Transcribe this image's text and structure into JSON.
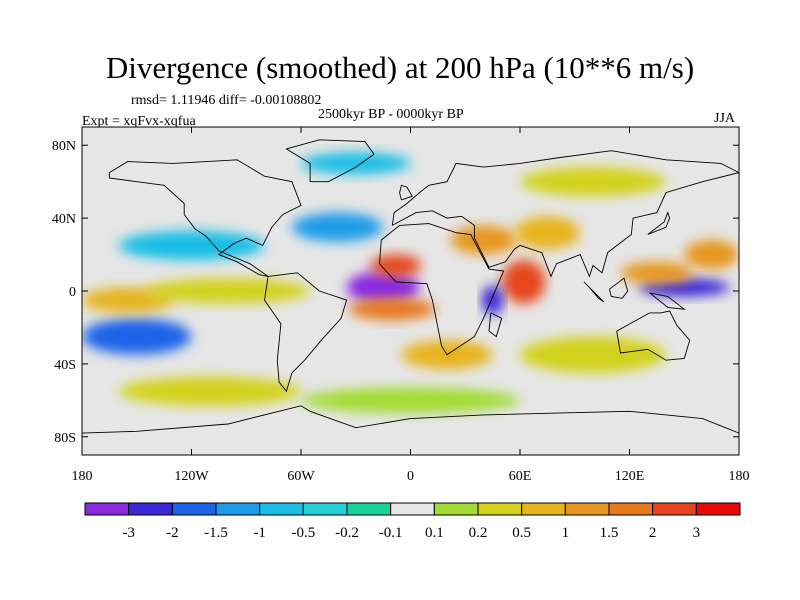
{
  "chart_data": {
    "type": "heatmap",
    "title": "Divergence (smoothed) at 200 hPa (10**6 m/s)",
    "stats_text": "rmsd= 1.11946 diff= -0.00108802",
    "period_text": "2500kyr BP - 0000kyr BP",
    "experiment_text": "Expt = xqFvx-xqfua",
    "season_text": "JJA",
    "x_axis": {
      "range": [
        -180,
        180
      ],
      "ticks": [
        -180,
        -120,
        -60,
        0,
        60,
        120,
        180
      ],
      "tick_labels": [
        "180",
        "120W",
        "60W",
        "0",
        "60E",
        "120E",
        "180"
      ]
    },
    "y_axis": {
      "range": [
        -90,
        90
      ],
      "ticks": [
        80,
        40,
        0,
        -40,
        -80
      ],
      "tick_labels": [
        "80N",
        "40N",
        "0",
        "40S",
        "80S"
      ]
    },
    "colorbar": {
      "levels": [
        "-3",
        "-2",
        "-1.5",
        "-1",
        "-0.5",
        "-0.2",
        "-0.1",
        "0.1",
        "0.2",
        "0.5",
        "1",
        "1.5",
        "2",
        "3"
      ],
      "colors": [
        "#8a2be2",
        "#3a28d4",
        "#1e64e8",
        "#1e9be8",
        "#19bde6",
        "#23cfd2",
        "#19d39a",
        "#e6e6e6",
        "#a0dc32",
        "#d2d21e",
        "#e6b41e",
        "#e6961e",
        "#e6781e",
        "#e6461e",
        "#e60a0a"
      ]
    },
    "anomalies": [
      {
        "lon": -15,
        "lat": 2,
        "rx": 20,
        "ry": 9,
        "level": -3
      },
      {
        "lon": -8,
        "lat": 14,
        "rx": 14,
        "ry": 6,
        "level": 3
      },
      {
        "lon": -10,
        "lat": -10,
        "rx": 24,
        "ry": 6,
        "level": 2
      },
      {
        "lon": 62,
        "lat": 5,
        "rx": 12,
        "ry": 12,
        "level": 3
      },
      {
        "lon": 45,
        "lat": -5,
        "rx": 6,
        "ry": 8,
        "level": -2
      },
      {
        "lon": 40,
        "lat": 28,
        "rx": 18,
        "ry": 8,
        "level": 1.5
      },
      {
        "lon": 75,
        "lat": 32,
        "rx": 18,
        "ry": 9,
        "level": 1
      },
      {
        "lon": 150,
        "lat": 2,
        "rx": 25,
        "ry": 5,
        "level": -2
      },
      {
        "lon": 135,
        "lat": 10,
        "rx": 20,
        "ry": 6,
        "level": 1.5
      },
      {
        "lon": 165,
        "lat": 20,
        "rx": 15,
        "ry": 8,
        "level": 1.5
      },
      {
        "lon": -150,
        "lat": -25,
        "rx": 30,
        "ry": 10,
        "level": -1.5
      },
      {
        "lon": -155,
        "lat": -5,
        "rx": 25,
        "ry": 7,
        "level": 1
      },
      {
        "lon": -100,
        "lat": 0,
        "rx": 45,
        "ry": 7,
        "level": 0.5
      },
      {
        "lon": -120,
        "lat": 25,
        "rx": 40,
        "ry": 8,
        "level": -0.5
      },
      {
        "lon": -40,
        "lat": 35,
        "rx": 25,
        "ry": 8,
        "level": -1
      },
      {
        "lon": 20,
        "lat": -35,
        "rx": 25,
        "ry": 8,
        "level": 1
      },
      {
        "lon": 100,
        "lat": -35,
        "rx": 40,
        "ry": 10,
        "level": 0.5
      },
      {
        "lon": 0,
        "lat": -60,
        "rx": 60,
        "ry": 7,
        "level": 0.2
      },
      {
        "lon": -110,
        "lat": -55,
        "rx": 50,
        "ry": 8,
        "level": 0.5
      },
      {
        "lon": 100,
        "lat": 60,
        "rx": 40,
        "ry": 8,
        "level": 0.5
      },
      {
        "lon": -30,
        "lat": 70,
        "rx": 30,
        "ry": 6,
        "level": -0.5
      }
    ]
  }
}
